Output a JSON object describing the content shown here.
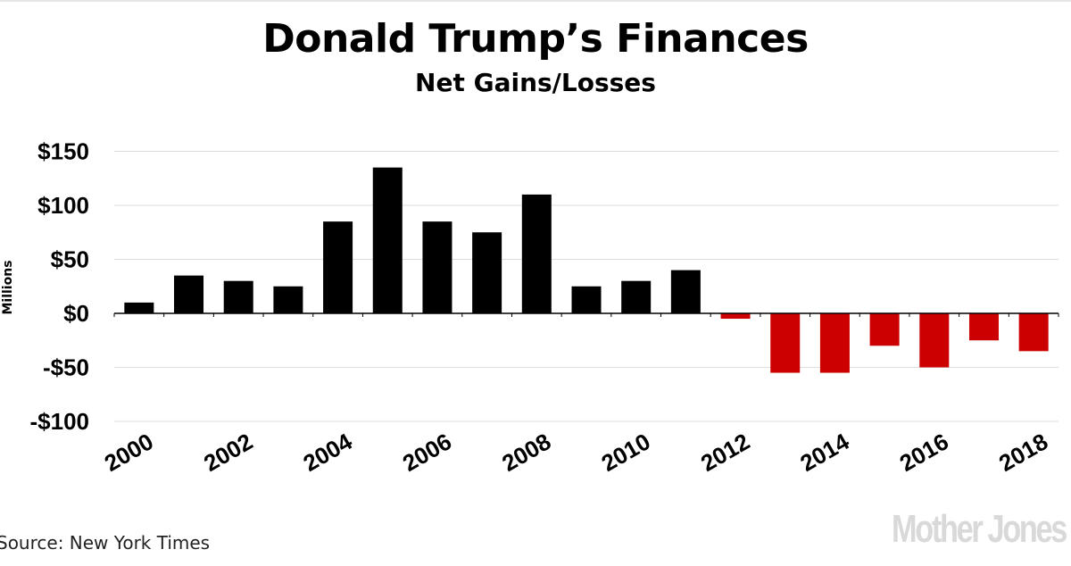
{
  "header": {
    "title": "Donald Trump’s Finances",
    "subtitle": "Net Gains/Losses"
  },
  "footer": {
    "source": "Source: New York Times",
    "brand": "Mother Jones"
  },
  "colors": {
    "gain": "#000000",
    "loss": "#cc0000",
    "grid": "#dddddd"
  },
  "chart_data": {
    "type": "bar",
    "title": "Donald Trump’s Finances",
    "subtitle": "Net Gains/Losses",
    "ylabel": "Millions",
    "xlabel": "",
    "ylim": [
      -100,
      150
    ],
    "yticks": [
      150,
      100,
      50,
      0,
      -50,
      -100
    ],
    "ytick_labels": [
      "$150",
      "$100",
      "$50",
      "$0",
      "-$50",
      "-$100"
    ],
    "categories": [
      "2000",
      "2001",
      "2002",
      "2003",
      "2004",
      "2005",
      "2006",
      "2007",
      "2008",
      "2009",
      "2010",
      "2011",
      "2012",
      "2013",
      "2014",
      "2015",
      "2016",
      "2017",
      "2018"
    ],
    "xtick_labels": [
      "2000",
      "2002",
      "2004",
      "2006",
      "2008",
      "2010",
      "2012",
      "2014",
      "2016",
      "2018"
    ],
    "values": [
      10,
      35,
      30,
      25,
      85,
      135,
      85,
      75,
      110,
      25,
      30,
      40,
      -5,
      -55,
      -55,
      -30,
      -50,
      -25,
      -35
    ],
    "grid": true,
    "legend": "none"
  }
}
